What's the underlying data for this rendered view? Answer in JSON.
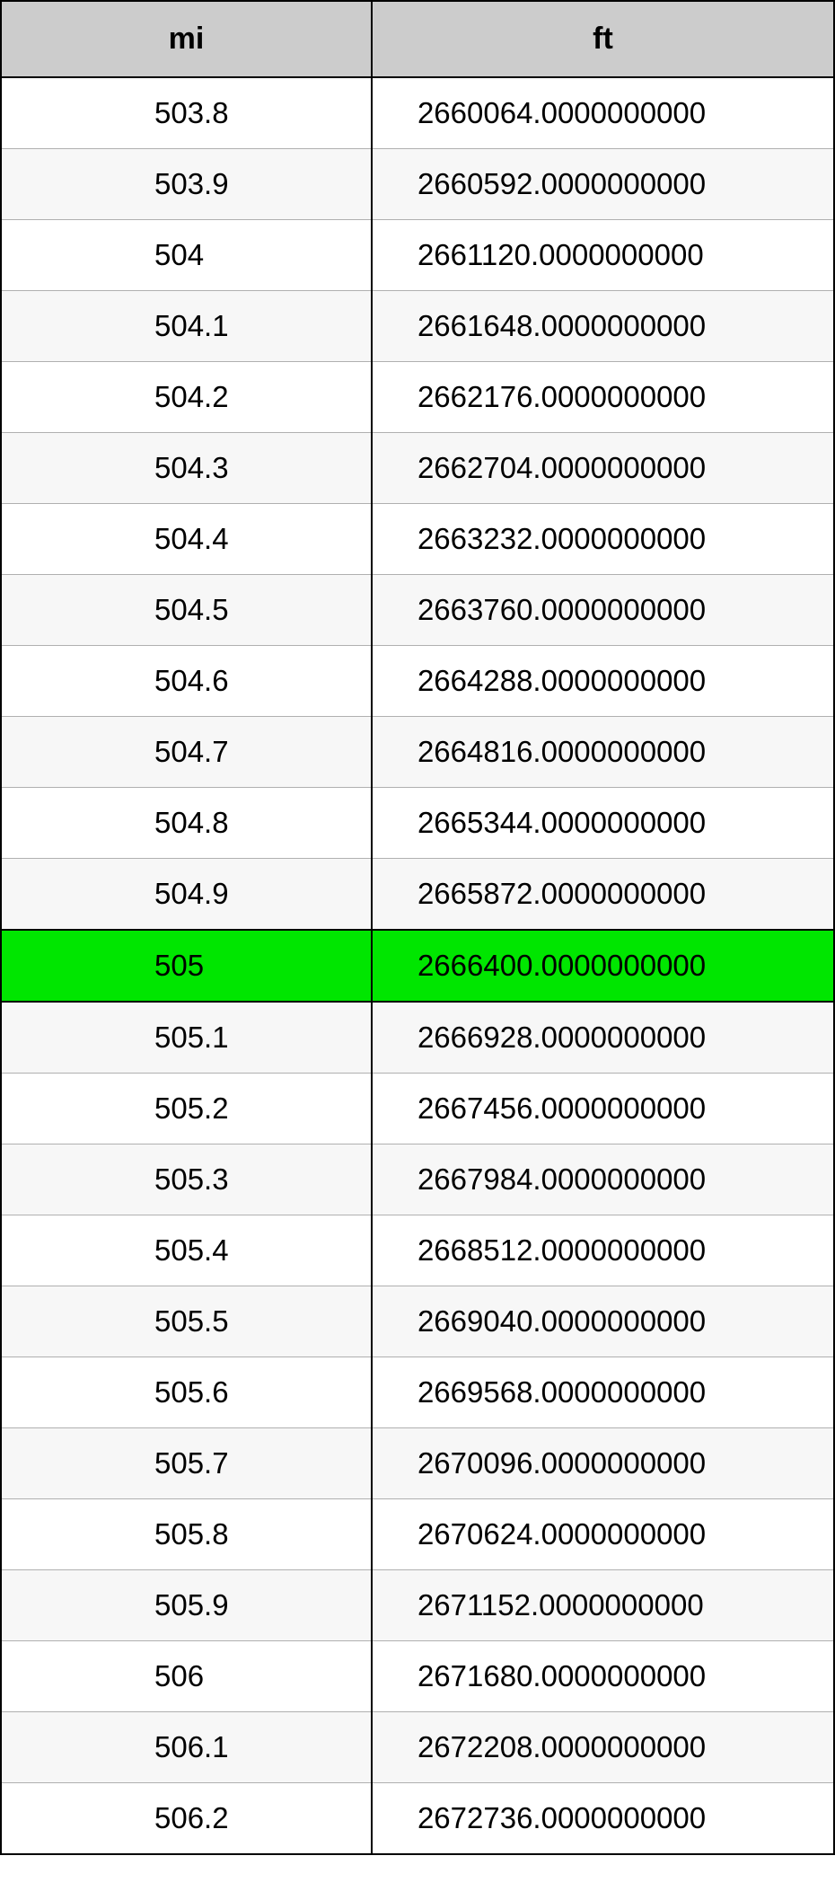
{
  "table": {
    "type": "table",
    "background_color": "#ffffff",
    "border_color": "#000000",
    "header_bg_color": "#cccccc",
    "row_even_bg_color": "#ffffff",
    "row_odd_bg_color": "#f7f7f7",
    "highlight_bg_color": "#00e600",
    "highlight_index": 12,
    "header_fontsize": 34,
    "cell_fontsize": 33,
    "font_weight_header": "bold",
    "font_weight_cell": "normal",
    "text_color": "#000000",
    "grid_color": "#b0b0b0",
    "columns": [
      {
        "label": "mi",
        "align": "left",
        "width_pct": 44.5
      },
      {
        "label": "ft",
        "align": "left",
        "width_pct": 55.5
      }
    ],
    "rows": [
      {
        "mi": "503.8",
        "ft": "2660064.0000000000"
      },
      {
        "mi": "503.9",
        "ft": "2660592.0000000000"
      },
      {
        "mi": "504",
        "ft": "2661120.0000000000"
      },
      {
        "mi": "504.1",
        "ft": "2661648.0000000000"
      },
      {
        "mi": "504.2",
        "ft": "2662176.0000000000"
      },
      {
        "mi": "504.3",
        "ft": "2662704.0000000000"
      },
      {
        "mi": "504.4",
        "ft": "2663232.0000000000"
      },
      {
        "mi": "504.5",
        "ft": "2663760.0000000000"
      },
      {
        "mi": "504.6",
        "ft": "2664288.0000000000"
      },
      {
        "mi": "504.7",
        "ft": "2664816.0000000000"
      },
      {
        "mi": "504.8",
        "ft": "2665344.0000000000"
      },
      {
        "mi": "504.9",
        "ft": "2665872.0000000000"
      },
      {
        "mi": "505",
        "ft": "2666400.0000000000"
      },
      {
        "mi": "505.1",
        "ft": "2666928.0000000000"
      },
      {
        "mi": "505.2",
        "ft": "2667456.0000000000"
      },
      {
        "mi": "505.3",
        "ft": "2667984.0000000000"
      },
      {
        "mi": "505.4",
        "ft": "2668512.0000000000"
      },
      {
        "mi": "505.5",
        "ft": "2669040.0000000000"
      },
      {
        "mi": "505.6",
        "ft": "2669568.0000000000"
      },
      {
        "mi": "505.7",
        "ft": "2670096.0000000000"
      },
      {
        "mi": "505.8",
        "ft": "2670624.0000000000"
      },
      {
        "mi": "505.9",
        "ft": "2671152.0000000000"
      },
      {
        "mi": "506",
        "ft": "2671680.0000000000"
      },
      {
        "mi": "506.1",
        "ft": "2672208.0000000000"
      },
      {
        "mi": "506.2",
        "ft": "2672736.0000000000"
      }
    ]
  }
}
